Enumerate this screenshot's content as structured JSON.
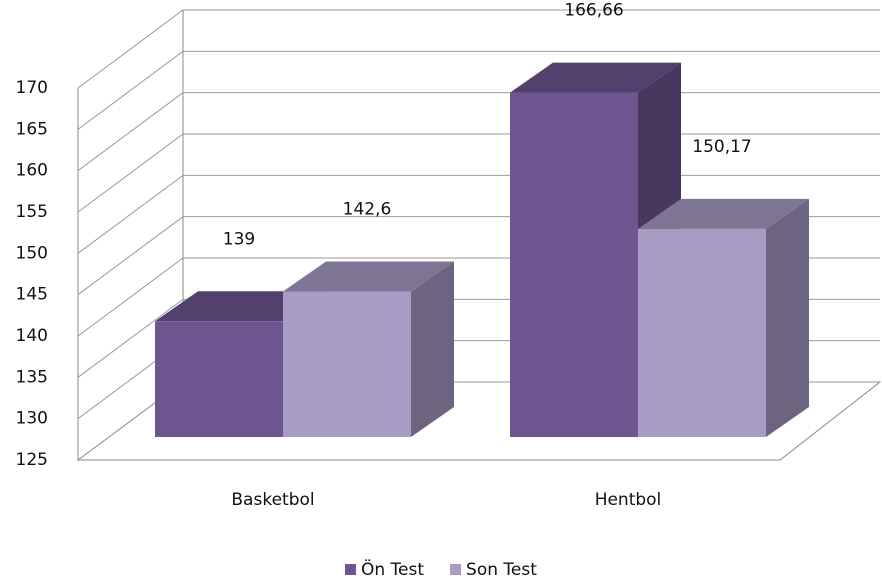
{
  "chart_data": {
    "type": "bar3d",
    "categories": [
      "Basketbol",
      "Hentbol"
    ],
    "series": [
      {
        "name": "Ön Test",
        "color": "#6f5590",
        "values": [
          139,
          166.66
        ],
        "value_labels": [
          "139",
          "166,66"
        ]
      },
      {
        "name": "Son Test",
        "color": "#a89bc4",
        "values": [
          142.6,
          150.17
        ],
        "value_labels": [
          "142,6",
          "150,17"
        ]
      }
    ],
    "ylim": [
      125,
      170
    ],
    "yticks": [
      125,
      130,
      135,
      140,
      145,
      150,
      155,
      160,
      165,
      170
    ],
    "grid": true,
    "legend": "bottom"
  }
}
